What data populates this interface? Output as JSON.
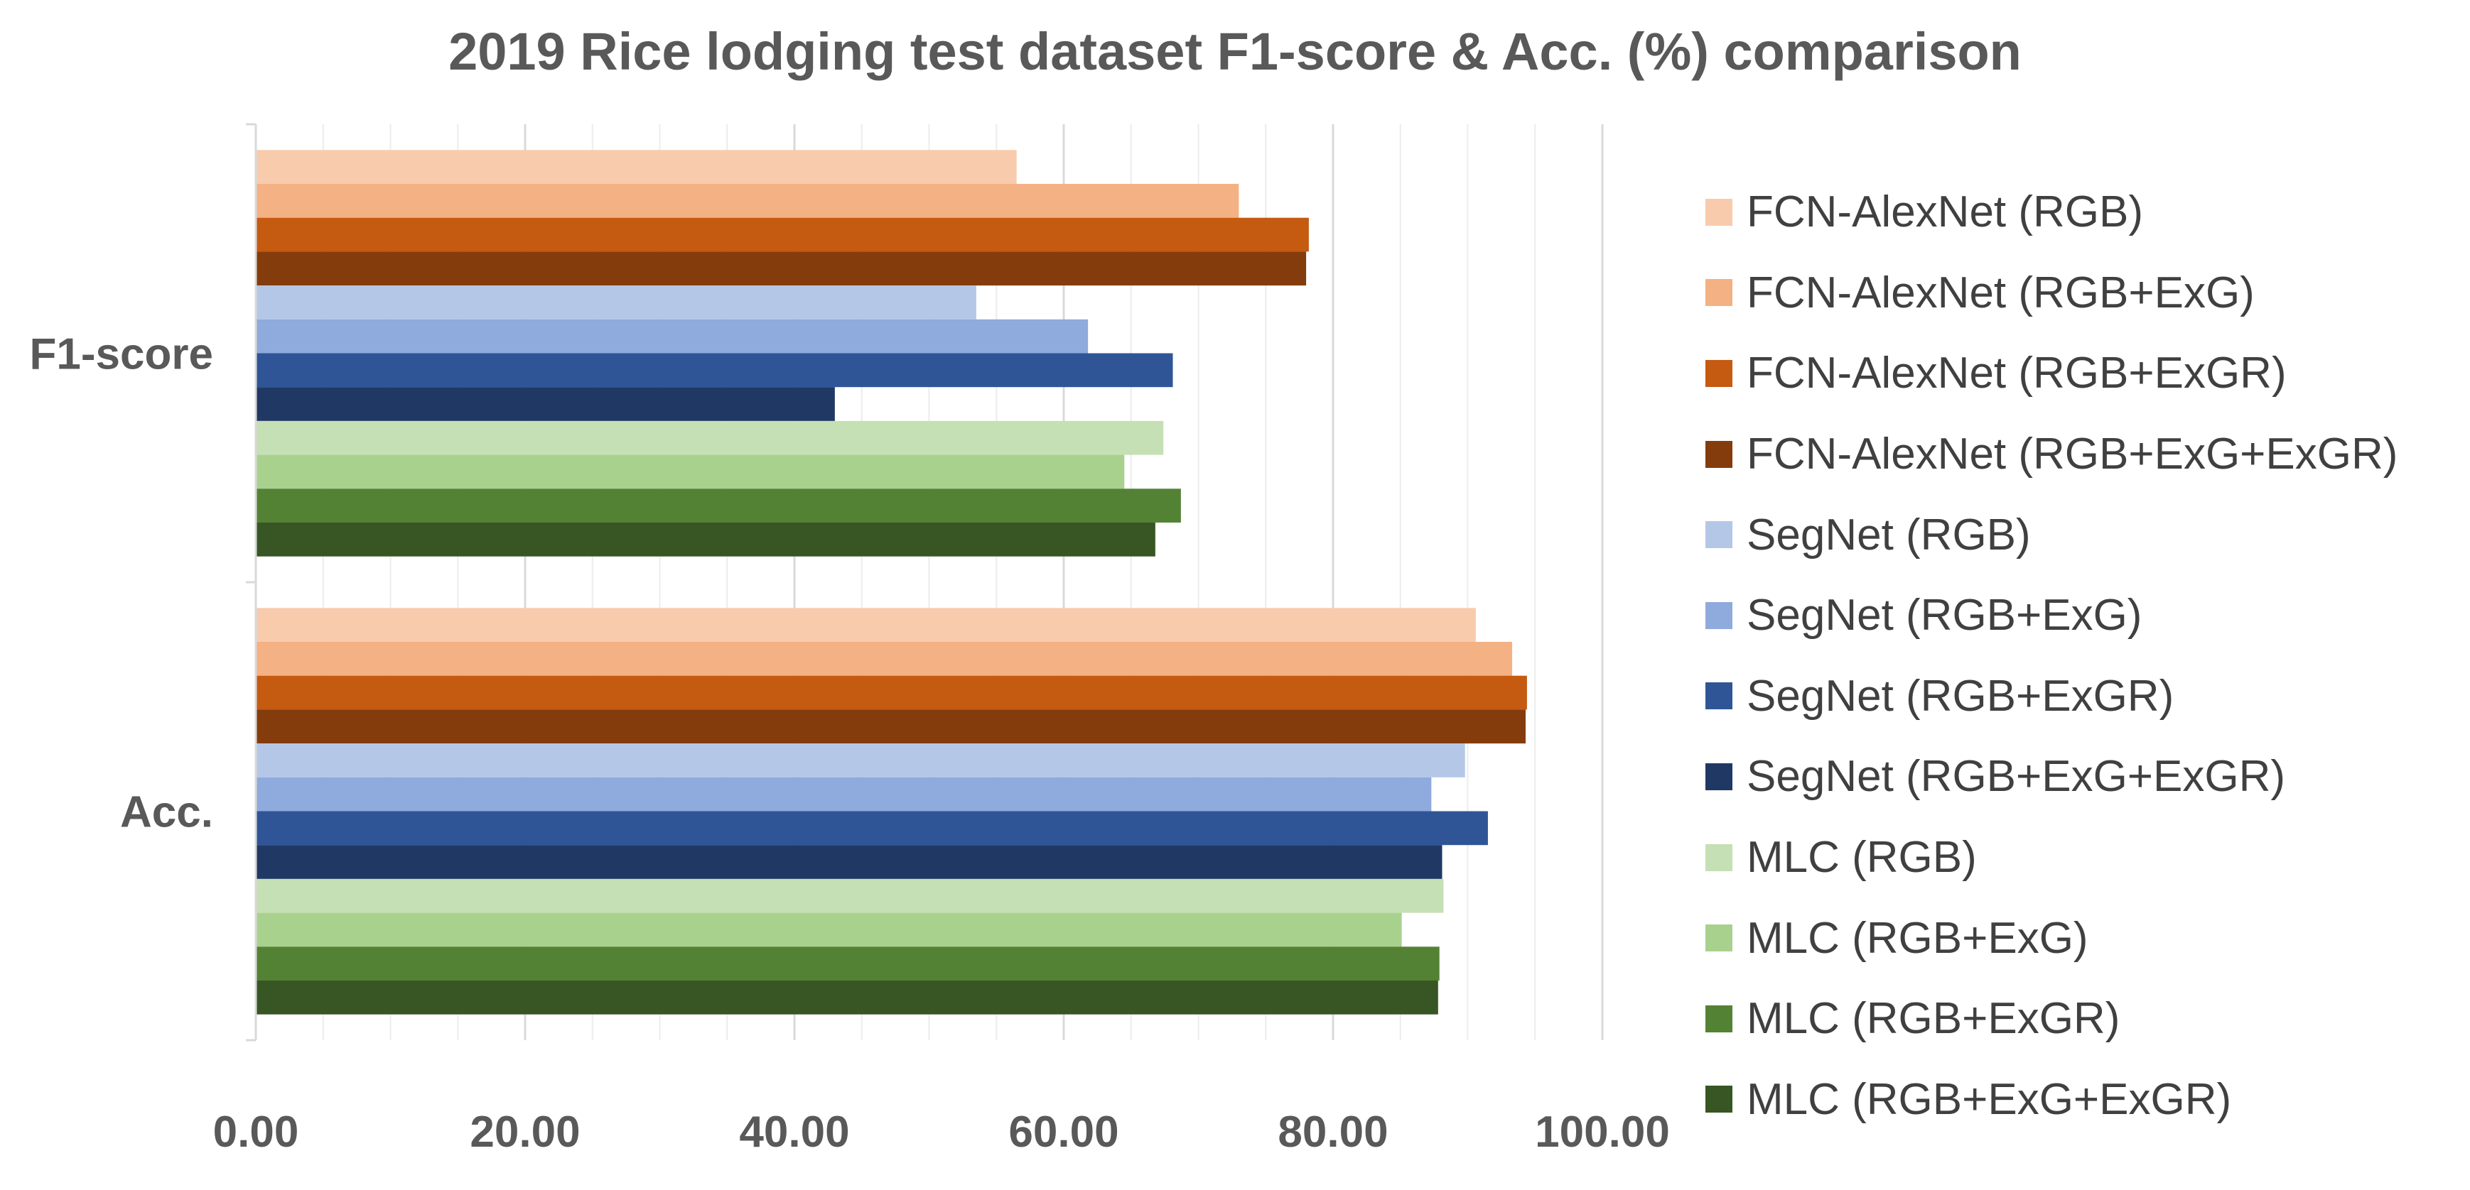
{
  "chart_data": {
    "type": "bar",
    "orientation": "horizontal",
    "title": "2019 Rice lodging test dataset F1-score & Acc. (%) comparison",
    "xlabel": "",
    "ylabel": "",
    "xlim": [
      0,
      100
    ],
    "x_ticks": [
      "0.00",
      "20.00",
      "40.00",
      "60.00",
      "80.00",
      "100.00"
    ],
    "categories": [
      "F1-score",
      "Acc."
    ],
    "grid": true,
    "legend_position": "right",
    "series": [
      {
        "name": "FCN-AlexNet (RGB)",
        "color": "#f8cbad",
        "values": [
          56.5,
          90.6
        ]
      },
      {
        "name": "FCN-AlexNet (RGB+ExG)",
        "color": "#f4b183",
        "values": [
          73.0,
          93.3
        ]
      },
      {
        "name": "FCN-AlexNet (RGB+ExGR)",
        "color": "#c55a11",
        "values": [
          78.2,
          94.4
        ]
      },
      {
        "name": "FCN-AlexNet (RGB+ExG+ExGR)",
        "color": "#843c0c",
        "values": [
          78.0,
          94.3
        ]
      },
      {
        "name": "SegNet (RGB)",
        "color": "#b4c7e7",
        "values": [
          53.5,
          89.8
        ]
      },
      {
        "name": "SegNet (RGB+ExG)",
        "color": "#8faadc",
        "values": [
          61.8,
          87.3
        ]
      },
      {
        "name": "SegNet (RGB+ExGR)",
        "color": "#2f5597",
        "values": [
          68.1,
          91.5
        ]
      },
      {
        "name": "SegNet (RGB+ExG+ExGR)",
        "color": "#203864",
        "values": [
          43.0,
          88.1
        ]
      },
      {
        "name": "MLC (RGB)",
        "color": "#c5e0b4",
        "values": [
          67.4,
          88.2
        ]
      },
      {
        "name": "MLC (RGB+ExG)",
        "color": "#a9d18e",
        "values": [
          64.5,
          85.1
        ]
      },
      {
        "name": "MLC (RGB+ExGR)",
        "color": "#548235",
        "values": [
          68.7,
          87.9
        ]
      },
      {
        "name": "MLC (RGB+ExG+ExGR)",
        "color": "#375623",
        "values": [
          66.8,
          87.8
        ]
      }
    ]
  }
}
